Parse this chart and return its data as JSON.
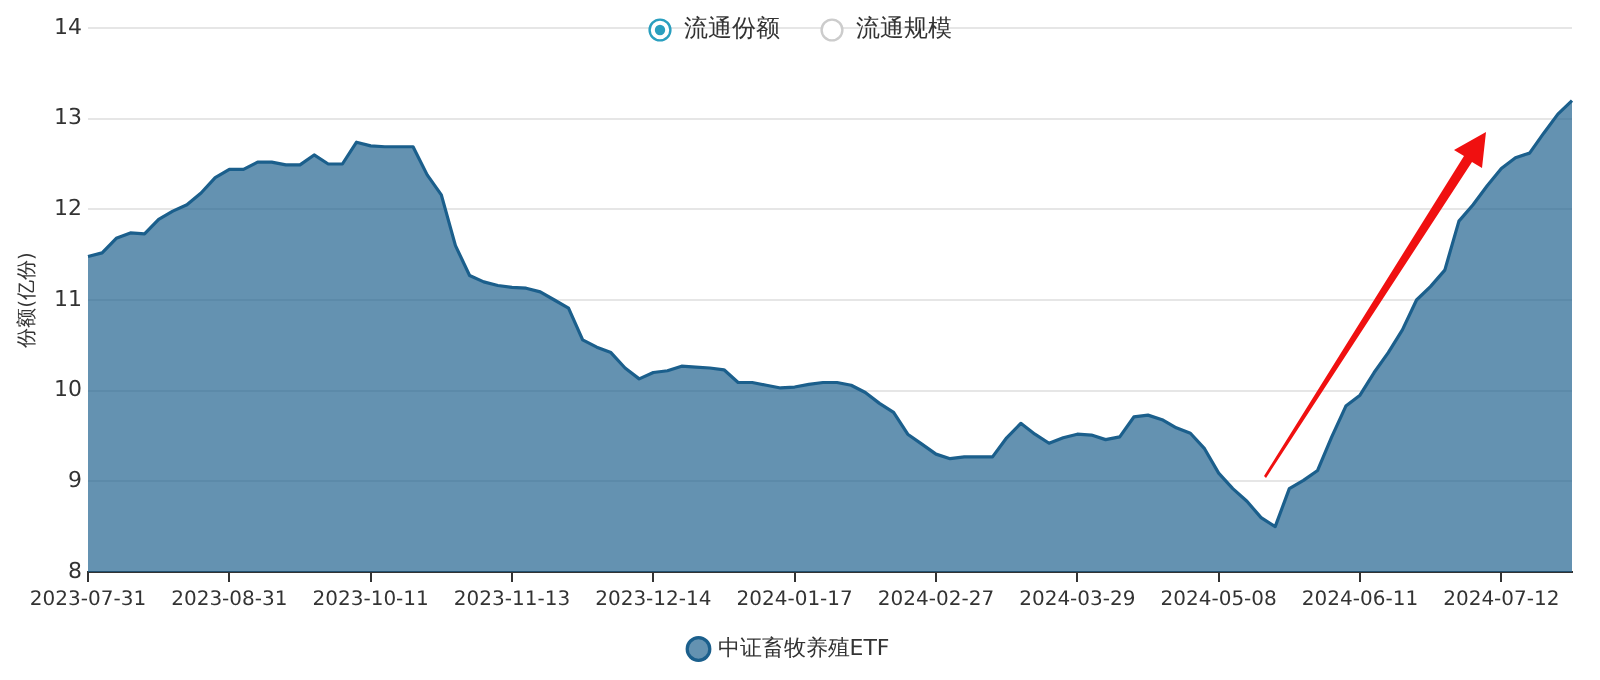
{
  "chart_data": {
    "type": "area",
    "ylabel": "份额(亿份)",
    "categories": [
      "2023-07-31",
      null,
      null,
      null,
      null,
      null,
      null,
      null,
      null,
      null,
      "2023-08-31",
      null,
      null,
      null,
      null,
      null,
      null,
      null,
      null,
      null,
      "2023-10-11",
      null,
      null,
      null,
      null,
      null,
      null,
      null,
      null,
      null,
      "2023-11-13",
      null,
      null,
      null,
      null,
      null,
      null,
      null,
      null,
      null,
      "2023-12-14",
      null,
      null,
      null,
      null,
      null,
      null,
      null,
      null,
      null,
      "2024-01-17",
      null,
      null,
      null,
      null,
      null,
      null,
      null,
      null,
      null,
      "2024-02-27",
      null,
      null,
      null,
      null,
      null,
      null,
      null,
      null,
      null,
      "2024-03-29",
      null,
      null,
      null,
      null,
      null,
      null,
      null,
      null,
      null,
      "2024-05-08",
      null,
      null,
      null,
      null,
      null,
      null,
      null,
      null,
      null,
      "2024-06-11",
      null,
      null,
      null,
      null,
      null,
      null,
      null,
      null,
      null,
      "2024-07-12",
      null,
      null,
      null,
      null,
      null
    ],
    "series": [
      {
        "name": "中证畜牧养殖ETF",
        "color": "#1b5f8c",
        "values": [
          11.48,
          11.52,
          11.68,
          11.74,
          11.73,
          11.89,
          11.98,
          12.05,
          12.18,
          12.35,
          12.44,
          12.44,
          12.52,
          12.52,
          12.49,
          12.49,
          12.6,
          12.5,
          12.5,
          12.74,
          12.7,
          12.69,
          12.69,
          12.69,
          12.38,
          12.16,
          11.6,
          11.27,
          11.2,
          11.16,
          11.14,
          11.13,
          11.09,
          11.0,
          10.91,
          10.56,
          10.48,
          10.42,
          10.25,
          10.13,
          10.2,
          10.22,
          10.27,
          10.26,
          10.25,
          10.23,
          10.09,
          10.09,
          10.06,
          10.03,
          10.04,
          10.07,
          10.09,
          10.09,
          10.06,
          9.98,
          9.86,
          9.76,
          9.52,
          9.41,
          9.3,
          9.25,
          9.27,
          9.27,
          9.27,
          9.48,
          9.64,
          9.52,
          9.42,
          9.48,
          9.52,
          9.51,
          9.46,
          9.49,
          9.71,
          9.73,
          9.68,
          9.59,
          9.53,
          9.36,
          9.09,
          8.92,
          8.78,
          8.6,
          8.5,
          8.92,
          9.01,
          9.12,
          9.49,
          9.83,
          9.95,
          10.2,
          10.42,
          10.67,
          11.0,
          11.15,
          11.33,
          11.87,
          12.05,
          12.26,
          12.45,
          12.57,
          12.62,
          12.84,
          13.05,
          13.2
        ]
      }
    ],
    "ylim": [
      8,
      14
    ],
    "yticks": [
      8,
      9,
      10,
      11,
      12,
      13,
      14
    ],
    "grid": "y",
    "legend": "bottom",
    "marker": "none",
    "annotations": [
      "流通份额",
      "流通规模"
    ]
  }
}
